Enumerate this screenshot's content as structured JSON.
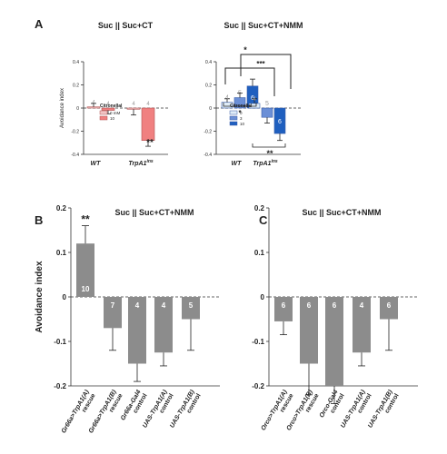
{
  "chart_data": [
    {
      "panel_letter": "A",
      "type": "bar",
      "title": "Suc || Suc+CT",
      "ylabel": "Avoidance index",
      "ylim": [
        -0.4,
        0.4
      ],
      "yticks": [
        "0.4",
        "0.2",
        "0",
        "-0.2",
        "-0.4"
      ],
      "categories": [
        "WT",
        "TrpA1"
      ],
      "category_superscript": [
        "",
        "ins"
      ],
      "legend": {
        "title": "Citronellal",
        "position": "center-left"
      },
      "series": [
        {
          "name": "0 mM",
          "color": "#f2c4c4",
          "values": [
            0.01,
            -0.01
          ],
          "err": [
            0.03,
            0.05
          ],
          "n": [
            "4",
            "4"
          ]
        },
        {
          "name": "10",
          "color": "#f08080",
          "values": [
            -0.02,
            -0.28
          ],
          "err": [
            0.03,
            0.05
          ],
          "n": [
            "4",
            "4"
          ]
        }
      ],
      "annotations": [
        "**"
      ]
    },
    {
      "panel_letter": "",
      "type": "bar",
      "title": "Suc || Suc+CT+NMM",
      "ylabel": "",
      "ylim": [
        -0.4,
        0.4
      ],
      "yticks": [
        "0.4",
        "0.2",
        "0",
        "-0.2",
        "-0.4"
      ],
      "categories": [
        "WT",
        "TrpA1"
      ],
      "category_superscript": [
        "",
        "ins"
      ],
      "legend": {
        "title": "Citronellal",
        "position": "center-left"
      },
      "series": [
        {
          "name": "0",
          "color": "#deebf7",
          "values": [
            0.05,
            0.04
          ],
          "err": [
            0.03,
            0.04
          ],
          "n": [
            "4",
            "4"
          ]
        },
        {
          "name": "3",
          "color": "#6b8fd6",
          "values": [
            0.09,
            -0.08
          ],
          "err": [
            0.04,
            0.05
          ],
          "n": [
            "5",
            "5"
          ]
        },
        {
          "name": "10",
          "color": "#1f5fbf",
          "values": [
            0.19,
            -0.22
          ],
          "err": [
            0.06,
            0.06
          ],
          "n": [
            "6",
            "6"
          ]
        }
      ],
      "annotations": [
        "*",
        "*",
        "***",
        "**"
      ]
    },
    {
      "panel_letter": "B",
      "type": "bar",
      "title": "Suc || Suc+CT+NMM",
      "ylabel": "Avoidance index",
      "ylim": [
        -0.2,
        0.2
      ],
      "yticks": [
        "0.2",
        "0.1",
        "0",
        "-0.1",
        "-0.2"
      ],
      "categories": [
        "Gr66a>TrpA1(A) rescue",
        "Gr66a>TrpA1(B) rescue",
        "Gr66a-Gal4 control",
        "UAS-TrpA1(A) control",
        "UAS-TrpA1(B) control"
      ],
      "values": [
        0.12,
        -0.07,
        -0.15,
        -0.125,
        -0.05
      ],
      "err": [
        0.04,
        0.05,
        0.04,
        0.03,
        0.07
      ],
      "n": [
        "10",
        "7",
        "4",
        "4",
        "5"
      ],
      "colors": [
        "#8c8c8c",
        "#8c8c8c",
        "#8c8c8c",
        "#8c8c8c",
        "#8c8c8c"
      ],
      "annotations": [
        "**"
      ]
    },
    {
      "panel_letter": "C",
      "type": "bar",
      "title": "Suc || Suc+CT+NMM",
      "ylabel": "",
      "ylim": [
        -0.2,
        0.2
      ],
      "yticks": [
        "0.2",
        "0.1",
        "0",
        "-0.1",
        "-0.2"
      ],
      "categories": [
        "Orco>TrpA1(A) rescue",
        "Orco>TrpA1(B) rescue",
        "Orco-Gal4 control",
        "UAS-TrpA1(A) control",
        "UAS-TrpA1(B) control"
      ],
      "values": [
        -0.055,
        -0.15,
        -0.2,
        -0.125,
        -0.05
      ],
      "err": [
        0.03,
        0.07,
        0.04,
        0.03,
        0.07
      ],
      "n": [
        "6",
        "6",
        "6",
        "4",
        "6"
      ],
      "colors": [
        "#8c8c8c",
        "#8c8c8c",
        "#8c8c8c",
        "#8c8c8c",
        "#8c8c8c"
      ],
      "annotations": []
    }
  ]
}
